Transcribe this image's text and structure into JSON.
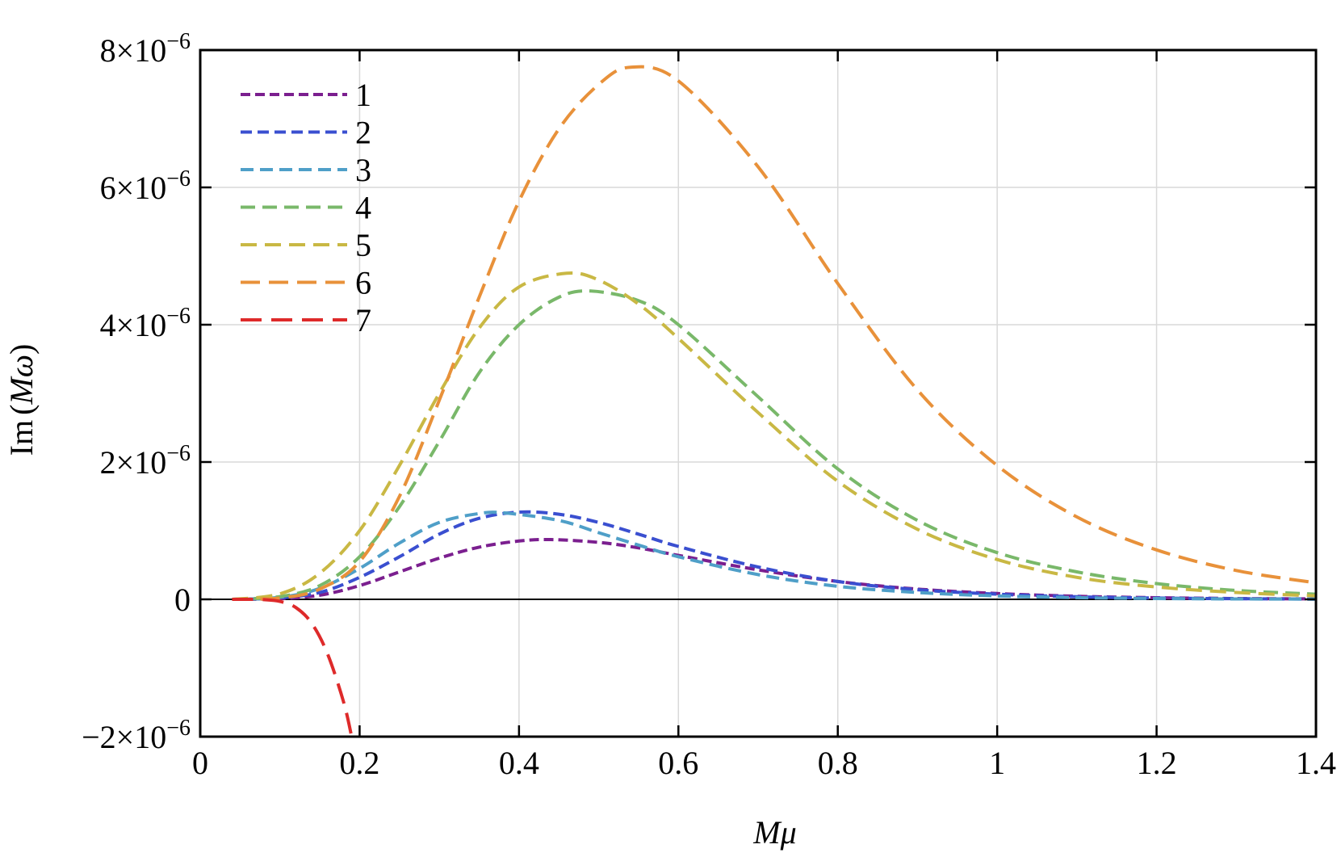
{
  "chart_data": {
    "type": "line",
    "title": "",
    "xlabel_main": "M",
    "xlabel_sym": "μ",
    "ylabel_prefix": "Im",
    "ylabel_open": "(",
    "ylabel_main": "M",
    "ylabel_sym": "ω",
    "ylabel_close": ")",
    "xlim": [
      0,
      1.4
    ],
    "ylim": [
      -2e-06,
      8e-06
    ],
    "grid": true,
    "legend_position": "top-left",
    "x_ticks": [
      {
        "value": 0,
        "label": "0"
      },
      {
        "value": 0.2,
        "label": "0.2"
      },
      {
        "value": 0.4,
        "label": "0.4"
      },
      {
        "value": 0.6,
        "label": "0.6"
      },
      {
        "value": 0.8,
        "label": "0.8"
      },
      {
        "value": 1.0,
        "label": "1"
      },
      {
        "value": 1.2,
        "label": "1.2"
      },
      {
        "value": 1.4,
        "label": "1.4"
      }
    ],
    "y_ticks": [
      {
        "value": -2e-06,
        "label": "−2×10",
        "exp": "−6"
      },
      {
        "value": 0,
        "label": "0",
        "exp": ""
      },
      {
        "value": 2e-06,
        "label": "2×10",
        "exp": "−6"
      },
      {
        "value": 4e-06,
        "label": "4×10",
        "exp": "−6"
      },
      {
        "value": 6e-06,
        "label": "6×10",
        "exp": "−6"
      },
      {
        "value": 8e-06,
        "label": "8×10",
        "exp": "−6"
      }
    ],
    "series": [
      {
        "name": "1",
        "color": "#7b1f8f",
        "dash": "12 6",
        "x": [
          0.04,
          0.1,
          0.15,
          0.2,
          0.25,
          0.3,
          0.35,
          0.4,
          0.44,
          0.5,
          0.55,
          0.6,
          0.7,
          0.8,
          0.9,
          1.0,
          1.1,
          1.2,
          1.3,
          1.4
        ],
        "y": [
          0,
          1e-08,
          6e-08,
          2e-07,
          4e-07,
          6e-07,
          7.6e-07,
          8.5e-07,
          8.7e-07,
          8.3e-07,
          7.5e-07,
          6.4e-07,
          4.3e-07,
          2.6e-07,
          1.5e-07,
          8.5e-08,
          4.5e-08,
          2.4e-08,
          1.2e-08,
          6e-09
        ]
      },
      {
        "name": "2",
        "color": "#3a4fd0",
        "dash": "14 7",
        "x": [
          0.04,
          0.1,
          0.15,
          0.2,
          0.25,
          0.3,
          0.35,
          0.4,
          0.45,
          0.5,
          0.55,
          0.6,
          0.7,
          0.8,
          0.9,
          1.0,
          1.1,
          1.2,
          1.3,
          1.4
        ],
        "y": [
          0,
          2e-08,
          1e-07,
          3.2e-07,
          6.2e-07,
          9.5e-07,
          1.18e-06,
          1.27e-06,
          1.24e-06,
          1.12e-06,
          9.5e-07,
          7.7e-07,
          4.7e-07,
          2.6e-07,
          1.4e-07,
          7.5e-08,
          3.8e-08,
          1.9e-08,
          9e-09,
          4e-09
        ]
      },
      {
        "name": "3",
        "color": "#4f9fc8",
        "dash": "16 8",
        "x": [
          0.04,
          0.1,
          0.15,
          0.2,
          0.25,
          0.3,
          0.35,
          0.38,
          0.45,
          0.5,
          0.55,
          0.6,
          0.7,
          0.8,
          0.9,
          1.0,
          1.1,
          1.2,
          1.3,
          1.4
        ],
        "y": [
          0,
          3e-08,
          1.6e-07,
          4.5e-07,
          8.2e-07,
          1.12e-06,
          1.25e-06,
          1.26e-06,
          1.15e-06,
          9.7e-07,
          7.9e-07,
          6.2e-07,
          3.6e-07,
          1.9e-07,
          1e-07,
          5e-08,
          2.5e-08,
          1.2e-08,
          6e-09,
          3e-09
        ]
      },
      {
        "name": "4",
        "color": "#79b86a",
        "dash": "18 9",
        "x": [
          0.04,
          0.1,
          0.15,
          0.2,
          0.25,
          0.3,
          0.35,
          0.4,
          0.45,
          0.49,
          0.55,
          0.6,
          0.7,
          0.8,
          0.9,
          1.0,
          1.1,
          1.2,
          1.3,
          1.4
        ],
        "y": [
          0,
          4e-08,
          2e-07,
          6.2e-07,
          1.35e-06,
          2.3e-06,
          3.3e-06,
          4e-06,
          4.4e-06,
          4.49e-06,
          4.35e-06,
          4e-06,
          2.95e-06,
          1.9e-06,
          1.15e-06,
          6.8e-07,
          4e-07,
          2.3e-07,
          1.3e-07,
          7.5e-08
        ]
      },
      {
        "name": "5",
        "color": "#c9b844",
        "dash": "20 10",
        "x": [
          0.04,
          0.1,
          0.15,
          0.2,
          0.25,
          0.3,
          0.35,
          0.4,
          0.46,
          0.5,
          0.55,
          0.6,
          0.7,
          0.8,
          0.9,
          1.0,
          1.1,
          1.2,
          1.3,
          1.4
        ],
        "y": [
          0,
          8e-08,
          3.8e-07,
          1e-06,
          1.95e-06,
          3e-06,
          3.95e-06,
          4.55e-06,
          4.75e-06,
          4.65e-06,
          4.3e-06,
          3.8e-06,
          2.72e-06,
          1.72e-06,
          1.02e-06,
          5.8e-07,
          3.2e-07,
          1.8e-07,
          1e-07,
          5e-08
        ]
      },
      {
        "name": "6",
        "color": "#e8913a",
        "dash": "24 11",
        "x": [
          0.04,
          0.1,
          0.15,
          0.2,
          0.25,
          0.3,
          0.35,
          0.4,
          0.45,
          0.5,
          0.54,
          0.6,
          0.7,
          0.8,
          0.9,
          1.0,
          1.1,
          1.2,
          1.3,
          1.4
        ],
        "y": [
          0,
          2e-08,
          1.5e-07,
          5.5e-07,
          1.5e-06,
          2.9e-06,
          4.4e-06,
          5.8e-06,
          6.85e-06,
          7.5e-06,
          7.75e-06,
          7.55e-06,
          6.3e-06,
          4.6e-06,
          3.05e-06,
          1.95e-06,
          1.2e-06,
          7.2e-07,
          4.2e-07,
          2.4e-07
        ]
      },
      {
        "name": "7",
        "color": "#de2a2a",
        "dash": "26 12",
        "x": [
          0.04,
          0.06,
          0.08,
          0.1,
          0.12,
          0.14,
          0.16,
          0.18,
          0.19
        ],
        "y": [
          0,
          0,
          -5e-09,
          -3e-08,
          -1.2e-07,
          -3.5e-07,
          -8e-07,
          -1.5e-06,
          -2e-06
        ]
      }
    ]
  }
}
